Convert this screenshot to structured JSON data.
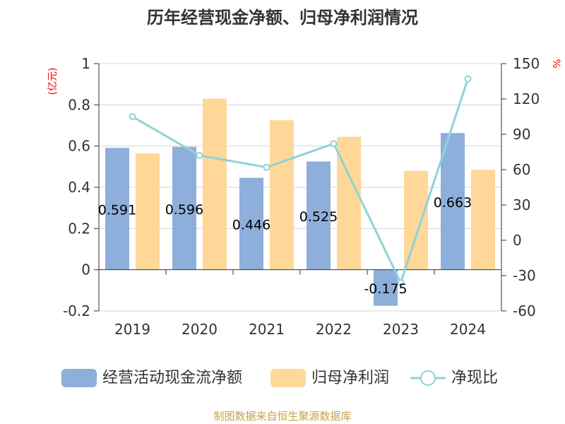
{
  "chart_data": {
    "type": "bar",
    "title": "历年经营现金净额、归母净利润情况",
    "categories": [
      "2019",
      "2020",
      "2021",
      "2022",
      "2023",
      "2024"
    ],
    "series": [
      {
        "name": "经营活动现金流净额",
        "type": "bar",
        "axis": "left",
        "color": "#8eaedb",
        "values": [
          0.591,
          0.596,
          0.446,
          0.525,
          -0.175,
          0.663
        ],
        "labels_shown": true
      },
      {
        "name": "归母净利润",
        "type": "bar",
        "axis": "left",
        "color": "#ffd899",
        "values": [
          0.565,
          0.83,
          0.725,
          0.645,
          0.48,
          0.485
        ],
        "labels_shown": false
      },
      {
        "name": "净现比",
        "type": "line",
        "axis": "right",
        "color": "#8dd3d6",
        "values": [
          105,
          72,
          62,
          82,
          -36,
          137
        ],
        "labels_shown": false
      }
    ],
    "y_left": {
      "unit": "(亿元)",
      "ylim": [
        -0.2,
        1
      ],
      "ticks": [
        -0.2,
        0,
        0.2,
        0.4,
        0.6,
        0.8,
        1
      ]
    },
    "y_right": {
      "unit": "%",
      "ylim": [
        -60,
        150
      ],
      "ticks": [
        -60,
        -30,
        0,
        30,
        60,
        90,
        120,
        150
      ]
    },
    "grid": true,
    "legend_position": "bottom",
    "source": "制图数据来自恒生聚源数据库"
  }
}
